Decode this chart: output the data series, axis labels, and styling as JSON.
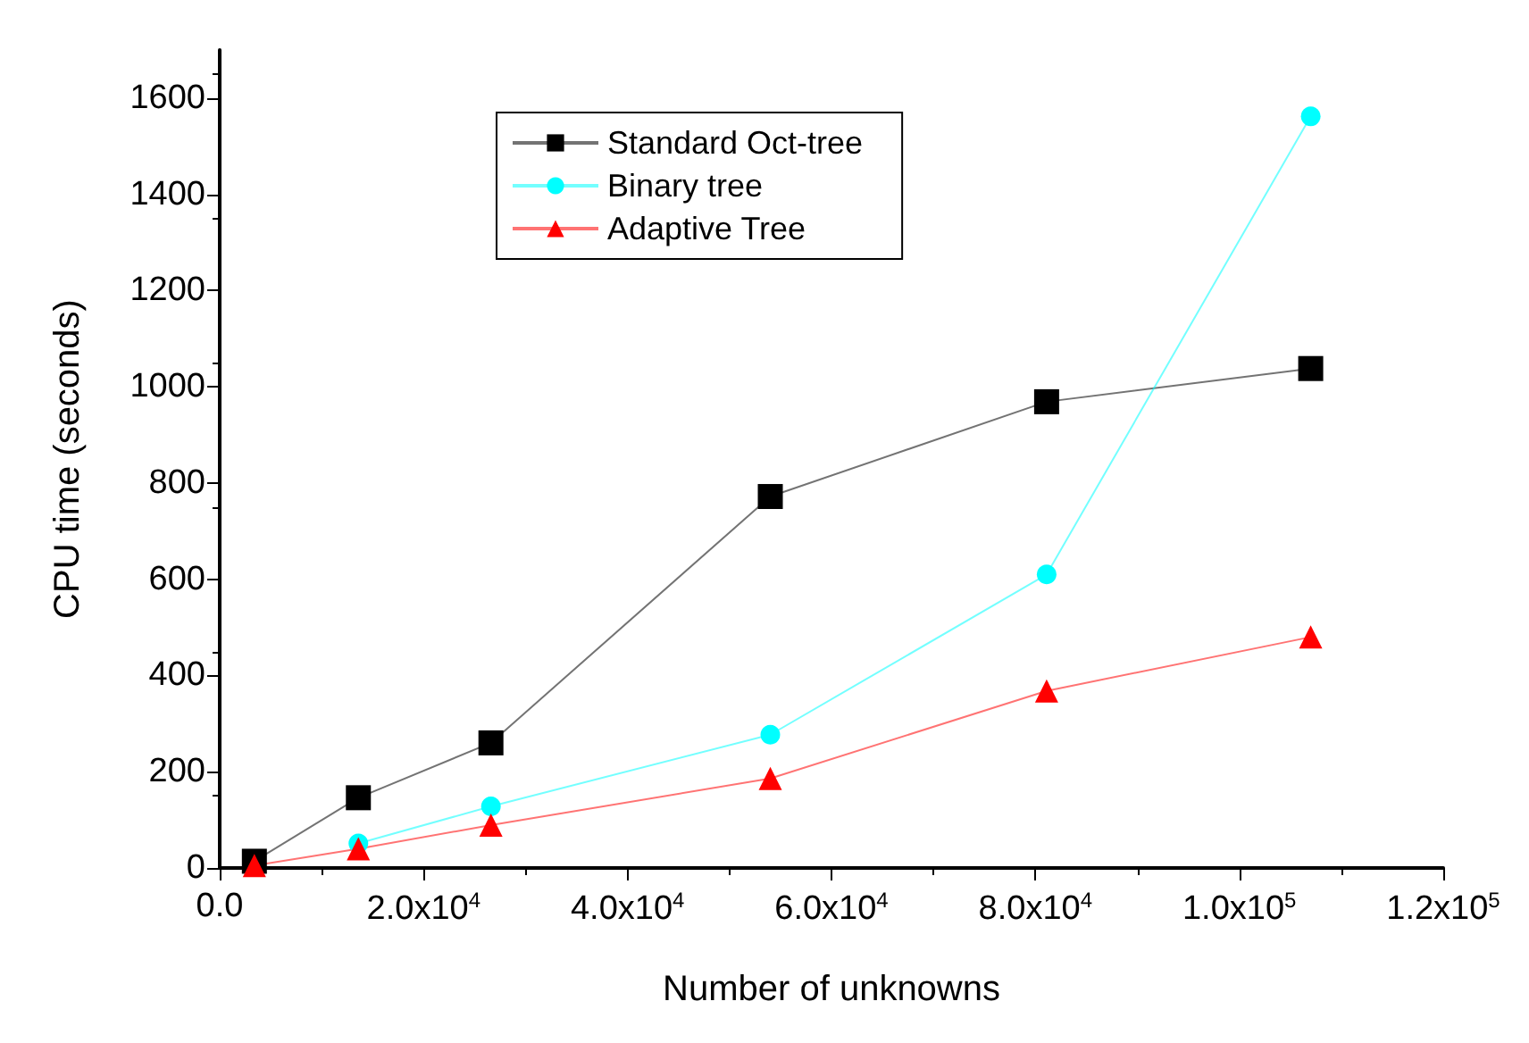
{
  "chart_data": {
    "type": "line",
    "xlabel": "Number of unknowns",
    "ylabel": "CPU time (seconds)",
    "x": [
      3400,
      13600,
      26600,
      54000,
      81100,
      107000
    ],
    "series": [
      {
        "name": "Standard Oct-tree",
        "color": "#000000",
        "marker": "square",
        "values": [
          14,
          146,
          260,
          772,
          969,
          1038
        ]
      },
      {
        "name": "Binary tree",
        "color": "#00ffff",
        "marker": "circle",
        "values": [
          null,
          51,
          128,
          277,
          610,
          1562
        ]
      },
      {
        "name": "Adaptive Tree",
        "color": "#ff0000",
        "marker": "triangle",
        "values": [
          5,
          40,
          89,
          186,
          368,
          480
        ]
      }
    ],
    "xlim": [
      0,
      120000
    ],
    "xticks": [
      {
        "value": 0,
        "label": "0.0"
      },
      {
        "value": 20000,
        "label": "2.0x10$^{4}$"
      },
      {
        "value": 40000,
        "label": "4.0x10$^{4}$"
      },
      {
        "value": 60000,
        "label": "6.0x10$^{4}$"
      },
      {
        "value": 80000,
        "label": "8.0x10$^{4}$"
      },
      {
        "value": 100000,
        "label": "1.0x10$^{5}$"
      },
      {
        "value": 120000,
        "label": "1.2x10$^{5}$"
      }
    ],
    "ylim": [
      0,
      1700
    ],
    "yticks": [
      0,
      200,
      400,
      600,
      800,
      1000,
      1200,
      1400,
      1600
    ],
    "grid": false,
    "legend": "top left",
    "line_style": "solid"
  }
}
